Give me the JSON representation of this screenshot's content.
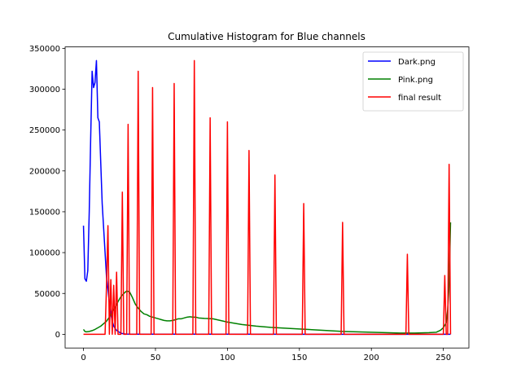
{
  "chart_data": {
    "type": "line",
    "title": "Cumulative Histogram for Blue channels",
    "xlabel": "",
    "ylabel": "",
    "xlim": [
      -12.75,
      267.75
    ],
    "ylim": [
      -16750,
      351750
    ],
    "xticks": [
      0,
      50,
      100,
      150,
      200,
      250
    ],
    "yticks": [
      0,
      50000,
      100000,
      150000,
      200000,
      250000,
      300000,
      350000
    ],
    "grid": false,
    "legend_position": "upper right",
    "series": [
      {
        "name": "Dark.png",
        "color": "#0000ff",
        "points": [
          [
            0,
            133000
          ],
          [
            1,
            68000
          ],
          [
            2,
            65000
          ],
          [
            3,
            78000
          ],
          [
            4,
            150000
          ],
          [
            5,
            240000
          ],
          [
            6,
            322000
          ],
          [
            7,
            302000
          ],
          [
            8,
            308000
          ],
          [
            9,
            335000
          ],
          [
            10,
            265000
          ],
          [
            11,
            260000
          ],
          [
            12,
            210000
          ],
          [
            13,
            160000
          ],
          [
            14,
            130000
          ],
          [
            15,
            100000
          ],
          [
            16,
            70000
          ],
          [
            17,
            55000
          ],
          [
            18,
            38000
          ],
          [
            19,
            25000
          ],
          [
            20,
            16000
          ],
          [
            21,
            10000
          ],
          [
            22,
            7000
          ],
          [
            23,
            5000
          ],
          [
            24,
            3500
          ],
          [
            25,
            2500
          ],
          [
            26,
            1500
          ],
          [
            27,
            900
          ],
          [
            28,
            600
          ],
          [
            29,
            400
          ],
          [
            30,
            300
          ],
          [
            35,
            200
          ],
          [
            40,
            150
          ],
          [
            60,
            120
          ],
          [
            100,
            100
          ],
          [
            150,
            80
          ],
          [
            200,
            60
          ],
          [
            240,
            50
          ],
          [
            255,
            40
          ]
        ]
      },
      {
        "name": "Pink.png",
        "color": "#008000",
        "points": [
          [
            0,
            6000
          ],
          [
            1,
            3500
          ],
          [
            2,
            3000
          ],
          [
            4,
            3500
          ],
          [
            6,
            4500
          ],
          [
            8,
            6000
          ],
          [
            10,
            8000
          ],
          [
            12,
            10000
          ],
          [
            14,
            13000
          ],
          [
            16,
            16000
          ],
          [
            18,
            21000
          ],
          [
            20,
            27000
          ],
          [
            22,
            33000
          ],
          [
            24,
            40000
          ],
          [
            26,
            46000
          ],
          [
            28,
            50000
          ],
          [
            30,
            53000
          ],
          [
            32,
            52000
          ],
          [
            34,
            45000
          ],
          [
            36,
            37000
          ],
          [
            38,
            32000
          ],
          [
            40,
            28000
          ],
          [
            42,
            25000
          ],
          [
            44,
            24000
          ],
          [
            46,
            22000
          ],
          [
            48,
            21000
          ],
          [
            50,
            20000
          ],
          [
            52,
            19000
          ],
          [
            54,
            18000
          ],
          [
            56,
            17000
          ],
          [
            58,
            16500
          ],
          [
            60,
            16500
          ],
          [
            62,
            17000
          ],
          [
            64,
            18000
          ],
          [
            66,
            19000
          ],
          [
            68,
            19000
          ],
          [
            70,
            20000
          ],
          [
            72,
            21000
          ],
          [
            74,
            21500
          ],
          [
            76,
            21000
          ],
          [
            78,
            21000
          ],
          [
            80,
            20000
          ],
          [
            84,
            19500
          ],
          [
            90,
            19000
          ],
          [
            95,
            17000
          ],
          [
            100,
            15000
          ],
          [
            105,
            13500
          ],
          [
            110,
            12000
          ],
          [
            115,
            11000
          ],
          [
            120,
            10000
          ],
          [
            130,
            8500
          ],
          [
            140,
            7500
          ],
          [
            150,
            6500
          ],
          [
            160,
            5500
          ],
          [
            170,
            4500
          ],
          [
            180,
            3500
          ],
          [
            190,
            3000
          ],
          [
            200,
            2500
          ],
          [
            210,
            2000
          ],
          [
            220,
            1500
          ],
          [
            230,
            1500
          ],
          [
            240,
            2000
          ],
          [
            245,
            2500
          ],
          [
            248,
            5000
          ],
          [
            250,
            8000
          ],
          [
            252,
            14000
          ],
          [
            253,
            30000
          ],
          [
            254,
            60000
          ],
          [
            255,
            137000
          ]
        ]
      },
      {
        "name": "final result",
        "color": "#ff0000",
        "points": [
          [
            0,
            0
          ],
          [
            15,
            0
          ],
          [
            16,
            60000
          ],
          [
            17,
            133000
          ],
          [
            18,
            0
          ],
          [
            19,
            67000
          ],
          [
            20,
            0
          ],
          [
            21,
            60000
          ],
          [
            22,
            0
          ],
          [
            23,
            76000
          ],
          [
            24,
            0
          ],
          [
            25,
            0
          ],
          [
            26,
            0
          ],
          [
            27,
            174000
          ],
          [
            28,
            0
          ],
          [
            30,
            0
          ],
          [
            31,
            257000
          ],
          [
            32,
            0
          ],
          [
            37,
            0
          ],
          [
            38,
            322000
          ],
          [
            39,
            0
          ],
          [
            47,
            0
          ],
          [
            48,
            302000
          ],
          [
            49,
            0
          ],
          [
            62,
            0
          ],
          [
            63,
            307000
          ],
          [
            64,
            0
          ],
          [
            76,
            0
          ],
          [
            77,
            335000
          ],
          [
            78,
            0
          ],
          [
            87,
            0
          ],
          [
            88,
            265000
          ],
          [
            89,
            0
          ],
          [
            99,
            0
          ],
          [
            100,
            260000
          ],
          [
            101,
            0
          ],
          [
            114,
            0
          ],
          [
            115,
            225000
          ],
          [
            116,
            0
          ],
          [
            132,
            0
          ],
          [
            133,
            195000
          ],
          [
            134,
            0
          ],
          [
            152,
            0
          ],
          [
            153,
            160000
          ],
          [
            154,
            0
          ],
          [
            179,
            0
          ],
          [
            180,
            137000
          ],
          [
            181,
            0
          ],
          [
            224,
            0
          ],
          [
            225,
            98000
          ],
          [
            226,
            0
          ],
          [
            250,
            0
          ],
          [
            251,
            72000
          ],
          [
            252,
            0
          ],
          [
            253,
            0
          ],
          [
            254,
            208000
          ],
          [
            255,
            0
          ]
        ]
      }
    ]
  }
}
